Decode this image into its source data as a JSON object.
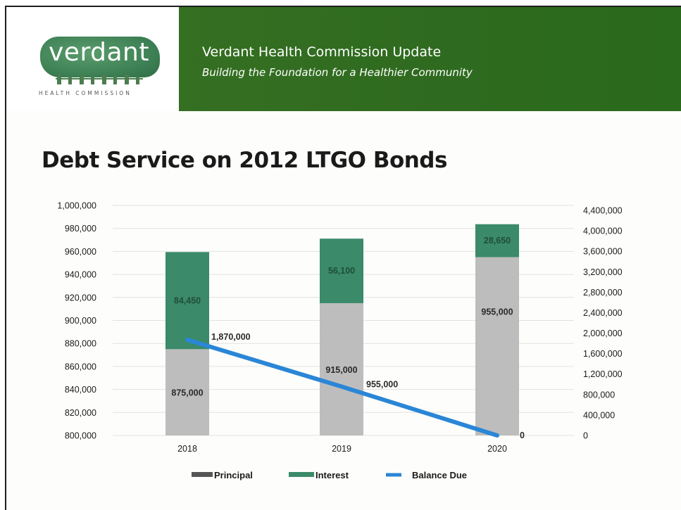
{
  "header": {
    "logo_word": "verdant",
    "logo_sub": "HEALTH COMMISSION",
    "title": "Verdant Health Commission Update",
    "subtitle": "Building the Foundation for a Healthier Community"
  },
  "colors": {
    "banner": "#2e6a1f",
    "principal": "#bdbdbd",
    "interest": "#3b8a6a",
    "balance": "#2a86d6"
  },
  "chart_data": {
    "type": "bar",
    "title": "Debt Service on 2012 LTGO Bonds",
    "categories": [
      "2018",
      "2019",
      "2020"
    ],
    "series": [
      {
        "name": "Principal",
        "type": "bar",
        "stack": "debt",
        "axis": "left",
        "values": [
          875000,
          915000,
          955000
        ],
        "labels": [
          "875,000",
          "915,000",
          "955,000"
        ]
      },
      {
        "name": "Interest",
        "type": "bar",
        "stack": "debt",
        "axis": "left",
        "values": [
          84450,
          56100,
          28650
        ],
        "labels": [
          "84,450",
          "56,100",
          "28,650"
        ]
      },
      {
        "name": "Balance Due",
        "type": "line",
        "axis": "right",
        "values": [
          1870000,
          955000,
          0
        ],
        "labels": [
          "1,870,000",
          "955,000",
          "0"
        ]
      }
    ],
    "y_left": {
      "min": 800000,
      "max": 1000000,
      "ticks": [
        "800,000",
        "820,000",
        "840,000",
        "860,000",
        "880,000",
        "900,000",
        "920,000",
        "940,000",
        "960,000",
        "980,000",
        "1,000,000"
      ]
    },
    "y_right": {
      "min": 0,
      "max": 4400000,
      "ticks": [
        "0",
        "400,000",
        "800,000",
        "1,200,000",
        "1,600,000",
        "2,000,000",
        "2,400,000",
        "2,800,000",
        "3,200,000",
        "3,600,000",
        "4,000,000",
        "4,400,000"
      ]
    },
    "grid": true,
    "legend": "bottom",
    "legend_items": [
      "Principal",
      "Interest",
      "Balance Due"
    ]
  }
}
